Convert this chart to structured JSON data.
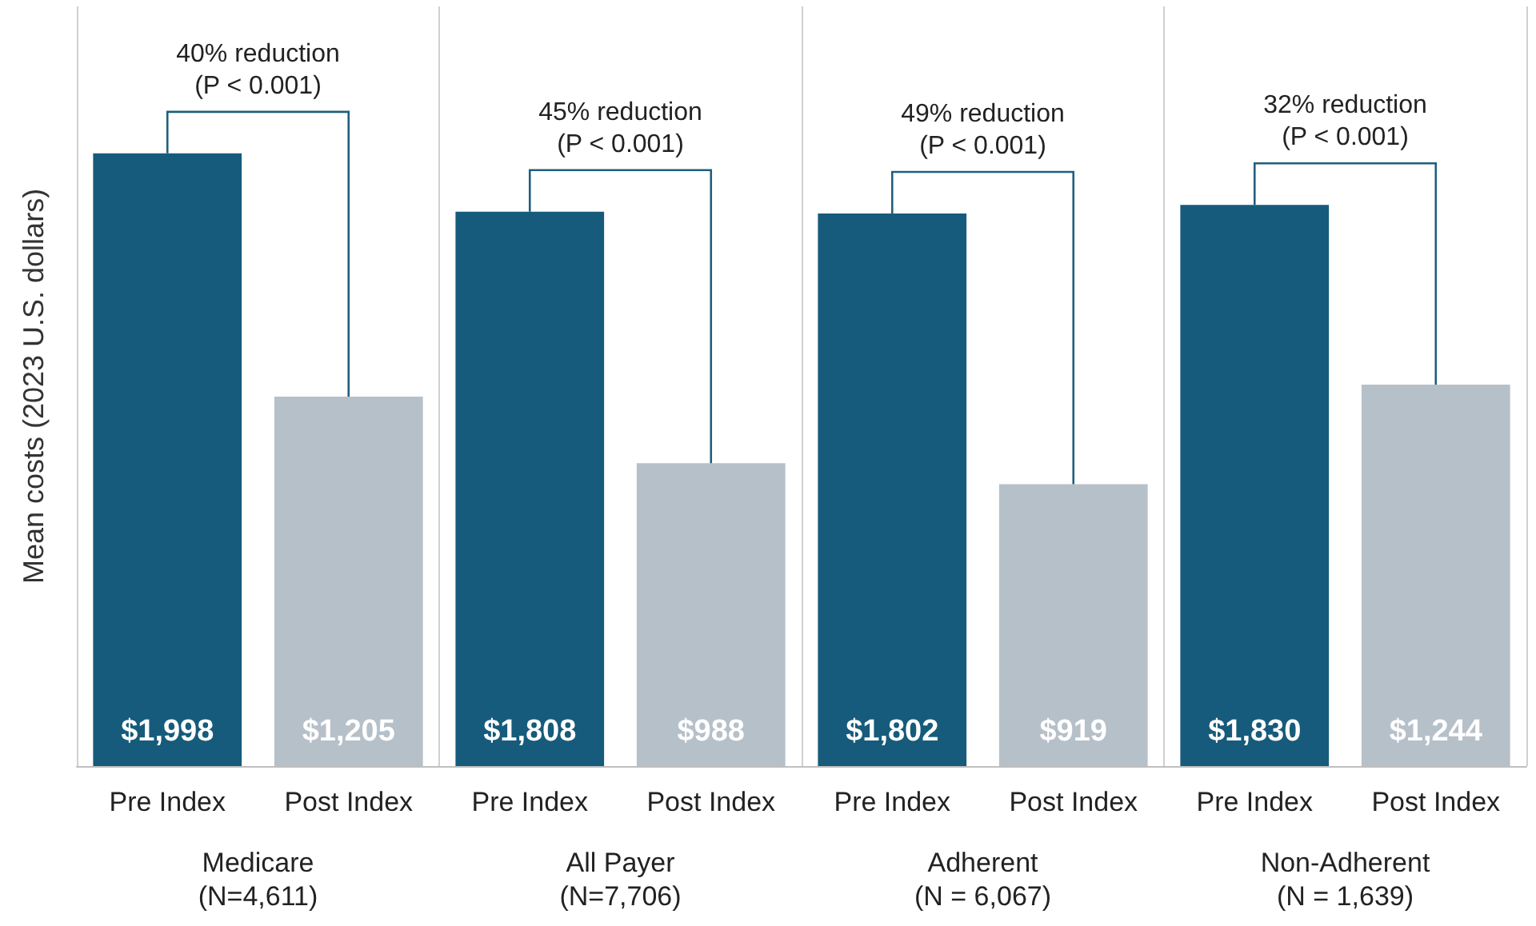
{
  "chart_data": {
    "type": "bar",
    "ylabel": "Mean costs (2023 U.S. dollars)",
    "categories": [
      "Medicare\n(N=4,611)",
      "All Payer\n(N=7,706)",
      "Adherent\n(N = 6,067)",
      "Non-Adherent\n(N = 1,639)"
    ],
    "series": [
      {
        "name": "Pre Index",
        "color": "#165b7b",
        "values": [
          1998,
          1808,
          1802,
          1830
        ],
        "value_labels": [
          "$1,998",
          "$1,808",
          "$1,802",
          "$1,830"
        ]
      },
      {
        "name": "Post Index",
        "color": "#b6c0c9",
        "values": [
          1205,
          988,
          919,
          1244
        ],
        "value_labels": [
          "$1,205",
          "$988",
          "$919",
          "$1,244"
        ]
      }
    ],
    "annotations": [
      "40% reduction\n(P < 0.001)",
      "45% reduction\n(P < 0.001)",
      "49% reduction\n(P < 0.001)",
      "32% reduction\n(P < 0.001)"
    ],
    "grid": "x",
    "legend": false
  }
}
